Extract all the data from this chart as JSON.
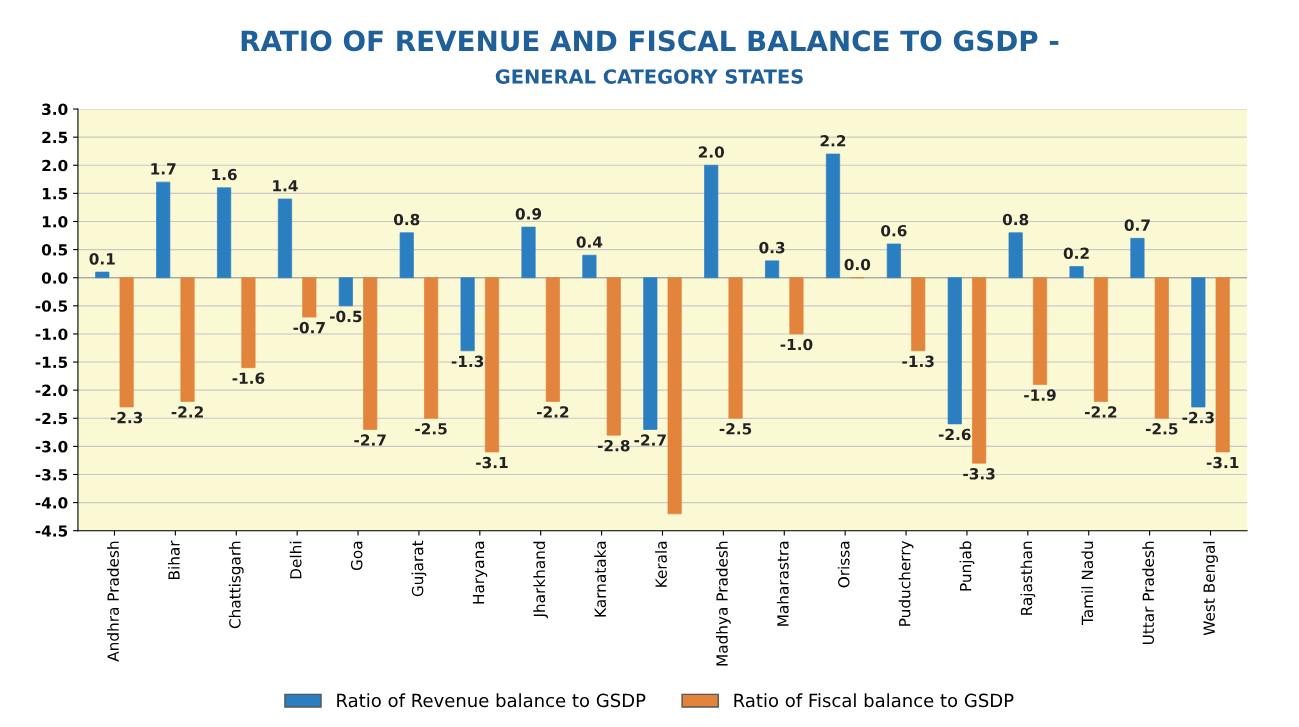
{
  "chart_data": {
    "type": "bar",
    "title": "RATIO OF REVENUE AND FISCAL BALANCE TO GSDP -",
    "subtitle": "GENERAL CATEGORY STATES",
    "categories": [
      "Andhra Pradesh",
      "Bihar",
      "Chattisgarh",
      "Delhi",
      "Goa",
      "Gujarat",
      "Haryana",
      "Jharkhand",
      "Karnataka",
      "Kerala",
      "Madhya Pradesh",
      "Maharastra",
      "Orissa",
      "Puducherry",
      "Punjab",
      "Rajasthan",
      "Tamil Nadu",
      "Uttar Pradesh",
      "West Bengal"
    ],
    "series": [
      {
        "name": "Ratio of Revenue balance to GSDP",
        "color": "#2b7fc1",
        "values": [
          0.1,
          1.7,
          1.6,
          1.4,
          -0.5,
          0.8,
          -1.3,
          0.9,
          0.4,
          -2.7,
          2.0,
          0.3,
          2.2,
          0.6,
          -2.6,
          0.8,
          0.2,
          0.7,
          -2.3
        ],
        "value_labels": [
          "0.1",
          "1.7",
          "1.6",
          "1.4",
          "-0.5",
          "0.8",
          "-1.3",
          "0.9",
          "0.4",
          "-2.7",
          "2.0",
          "0.3",
          "2.2",
          "0.6",
          "-2.6",
          "0.8",
          "0.2",
          "0.7",
          "-2.3"
        ]
      },
      {
        "name": "Ratio of Fiscal balance to GSDP",
        "color": "#e2843c",
        "values": [
          -2.3,
          -2.2,
          -1.6,
          -0.7,
          -2.7,
          -2.5,
          -3.1,
          -2.2,
          -2.8,
          -4.2,
          -2.5,
          -1.0,
          0.0,
          -1.3,
          -3.3,
          -1.9,
          -2.2,
          -2.5,
          -3.1
        ],
        "value_labels": [
          "-2.3",
          "-2.2",
          "-1.6",
          "-0.7",
          "-2.7",
          "-2.5",
          "-3.1",
          "-2.2",
          "-2.8",
          null,
          "-2.5",
          "-1.0",
          "0.0",
          "-1.3",
          "-3.3",
          "-1.9",
          "-2.2",
          "-2.5",
          "-3.1"
        ]
      }
    ],
    "ylim": [
      -4.5,
      3.0
    ],
    "yticks": [
      {
        "value": -4.5,
        "label": "-4.5"
      },
      {
        "value": -4.0,
        "label": "-4.0"
      },
      {
        "value": -3.5,
        "label": "-3.5"
      },
      {
        "value": -3.0,
        "label": "-3.0"
      },
      {
        "value": -2.5,
        "label": "-2.5"
      },
      {
        "value": -2.0,
        "label": "-2.0"
      },
      {
        "value": -1.5,
        "label": "-1.5"
      },
      {
        "value": -1.0,
        "label": "-1.0"
      },
      {
        "value": -0.5,
        "label": "-0.5"
      },
      {
        "value": 0.0,
        "label": "0.0"
      },
      {
        "value": 0.5,
        "label": "0.5"
      },
      {
        "value": 1.0,
        "label": "1.0"
      },
      {
        "value": 1.5,
        "label": "1.5"
      },
      {
        "value": 2.0,
        "label": "2.0"
      },
      {
        "value": 2.5,
        "label": "2.5"
      },
      {
        "value": 3.0,
        "label": "3.0"
      }
    ],
    "grid": "y",
    "legend": "bottom"
  }
}
